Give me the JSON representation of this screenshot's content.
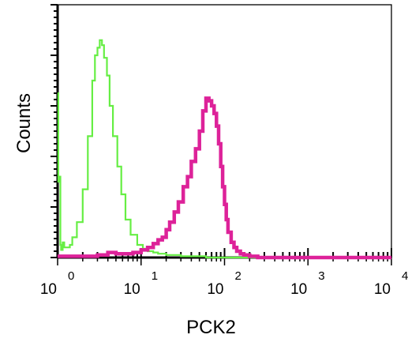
{
  "chart_data": {
    "type": "line",
    "title": "",
    "xlabel": "PCK2",
    "ylabel": "Counts",
    "x_scale": "log",
    "xlim": [
      1,
      10000
    ],
    "ylim": [
      0,
      100
    ],
    "grid": false,
    "x_ticks": [
      {
        "base": "10",
        "exp": "0",
        "value": 1
      },
      {
        "base": "10",
        "exp": "1",
        "value": 10
      },
      {
        "base": "10",
        "exp": "2",
        "value": 100
      },
      {
        "base": "10",
        "exp": "3",
        "value": 1000
      },
      {
        "base": "10",
        "exp": "4",
        "value": 10000
      }
    ],
    "series": [
      {
        "color": "#66ee44",
        "x": [
          1,
          1.02,
          1.05,
          1.08,
          1.1,
          1.15,
          1.2,
          1.3,
          1.4,
          1.5,
          1.7,
          2.0,
          2.3,
          2.6,
          2.8,
          3.0,
          3.2,
          3.4,
          3.6,
          3.9,
          4.2,
          4.6,
          5.2,
          5.8,
          6.5,
          7.5,
          9,
          10.5,
          12,
          14,
          16,
          20,
          25,
          30,
          40,
          60,
          100,
          200,
          500,
          1000,
          3000,
          10000
        ],
        "y": [
          65,
          30,
          32,
          5,
          3,
          6,
          4,
          4,
          5,
          8,
          14,
          27,
          48,
          70,
          80,
          83,
          86,
          84,
          79,
          72,
          60,
          48,
          36,
          25,
          15,
          9,
          5,
          3.5,
          2.5,
          2,
          1.5,
          1,
          1,
          0.5,
          0.5,
          0,
          0,
          0,
          0,
          0,
          0,
          0
        ]
      },
      {
        "color": "#dd2299",
        "x": [
          1,
          2,
          3,
          4,
          5,
          6,
          8,
          10,
          12,
          14,
          16,
          18,
          20,
          22,
          25,
          28,
          32,
          36,
          40,
          45,
          50,
          55,
          60,
          65,
          70,
          75,
          80,
          85,
          90,
          95,
          100,
          105,
          110,
          120,
          130,
          140,
          155,
          170,
          200,
          250,
          1000,
          10000
        ],
        "y": [
          0.5,
          0.5,
          1,
          2,
          1.5,
          1.5,
          2,
          3,
          4,
          5.5,
          7,
          8,
          11,
          14,
          18,
          22,
          28,
          32,
          38,
          43,
          50,
          58,
          63,
          62,
          60,
          57,
          52,
          45,
          36,
          28,
          21,
          15,
          10,
          6,
          4,
          2.5,
          1.5,
          1,
          0.5,
          0,
          0,
          0
        ]
      }
    ]
  }
}
